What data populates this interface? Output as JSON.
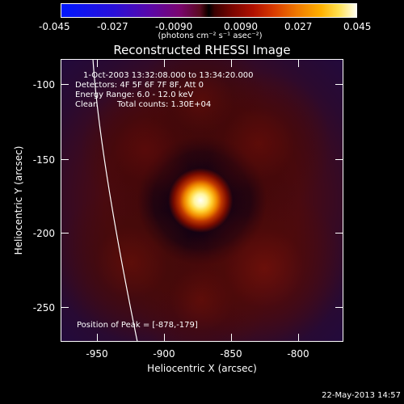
{
  "colorbar": {
    "tick_labels": [
      "-0.045",
      "-0.027",
      "-0.0090",
      "0.0090",
      "0.027",
      "0.045"
    ],
    "units_label": "(photons cm⁻² s⁻¹ asec⁻²)"
  },
  "plot": {
    "title": "Reconstructed RHESSI Image",
    "xlabel": "Heliocentric X (arcsec)",
    "ylabel": "Heliocentric Y (arcsec)",
    "x_ticks": [
      "-950",
      "-900",
      "-850",
      "-800"
    ],
    "y_ticks": [
      "-100",
      "-150",
      "-200",
      "-250"
    ],
    "info": {
      "time_range": "1-Oct-2003 13:32:08.000 to 13:34:20.000",
      "detectors": "Detectors: 4F 5F 6F 7F 8F, Att 0",
      "energy": "Energy Range: 6.0 - 12.0 keV",
      "algorithm": "Clean",
      "counts": "Total counts: 1.30E+04"
    },
    "peak_position": "Position of Peak = [-878,-179]"
  },
  "footer": {
    "date": "22-May-2013 14:57"
  }
}
